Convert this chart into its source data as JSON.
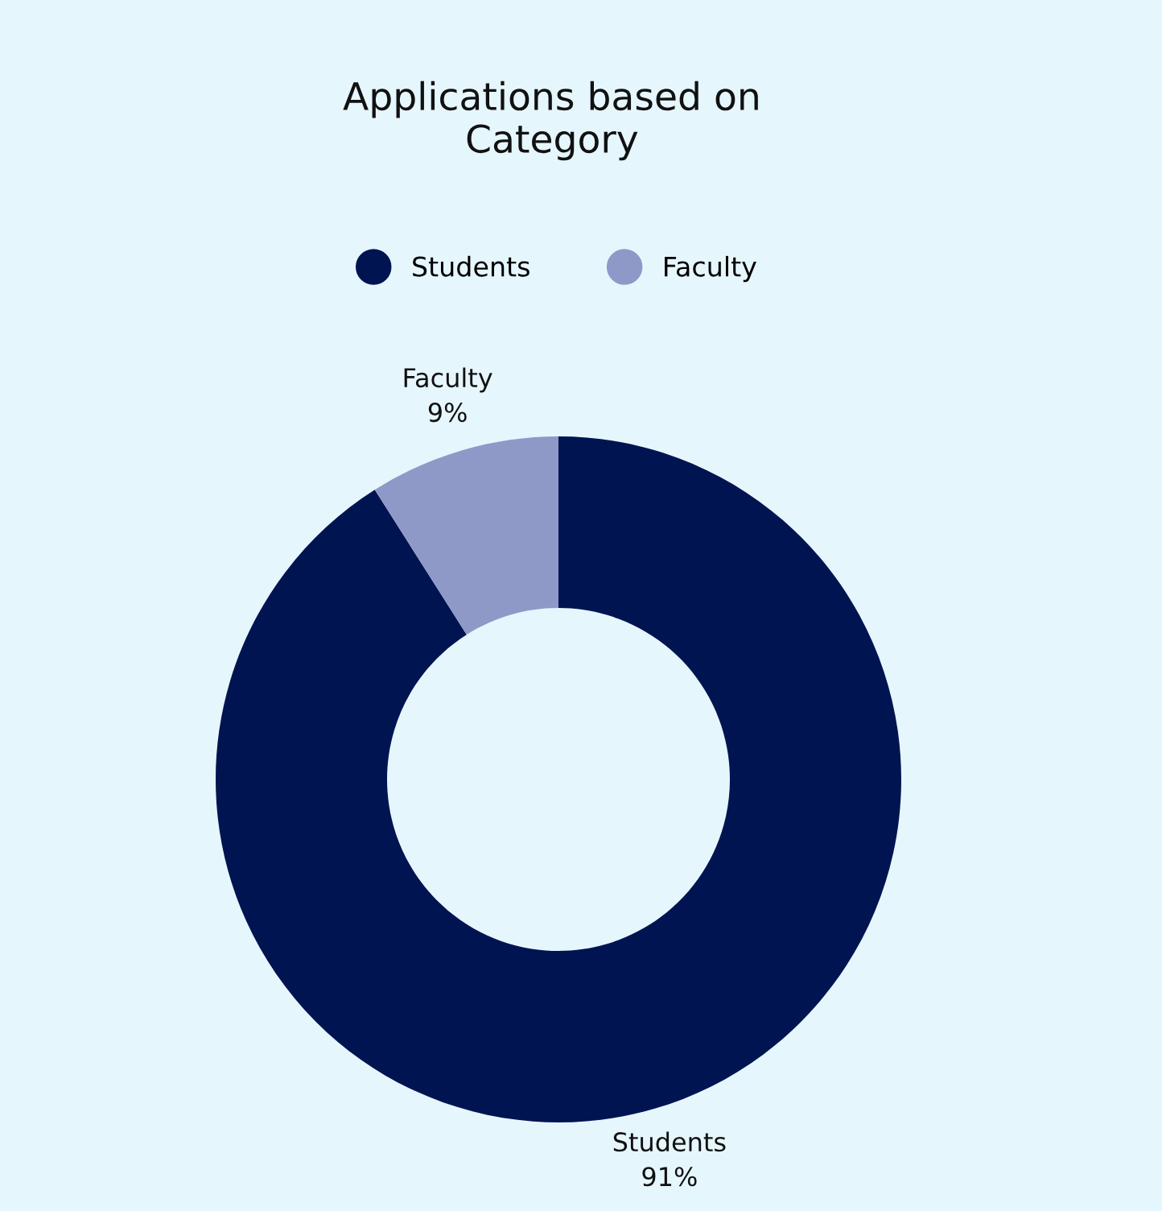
{
  "chart_data": {
    "type": "donut",
    "title": "Applications based on\nCategory",
    "categories": [
      "Students",
      "Faculty"
    ],
    "values": [
      91,
      9
    ],
    "colors": [
      "#001451",
      "#8f99c8"
    ],
    "value_labels": [
      "Students\n91%",
      "Faculty\n9%"
    ],
    "legend": "top"
  }
}
